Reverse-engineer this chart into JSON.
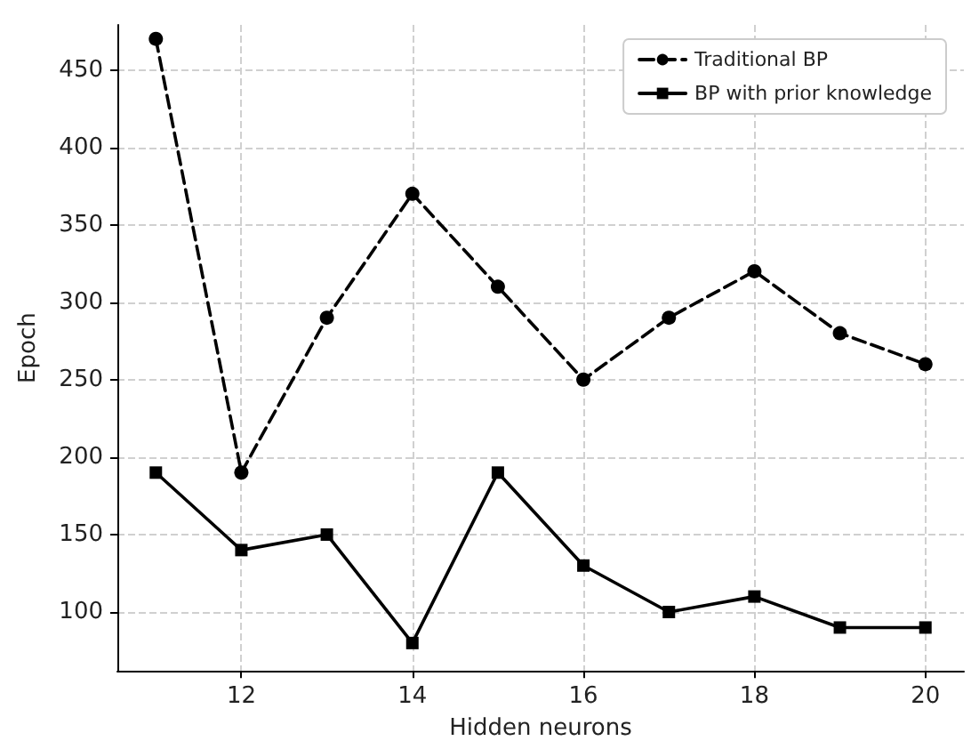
{
  "chart_data": {
    "type": "line",
    "xlabel": "Hidden neurons",
    "ylabel": "Epoch",
    "x": [
      11,
      12,
      13,
      14,
      15,
      16,
      17,
      18,
      19,
      20
    ],
    "series": [
      {
        "name": "Traditional BP",
        "color": "#000000",
        "marker": "circle",
        "line_style": "dashed",
        "values": [
          470,
          190,
          290,
          370,
          310,
          250,
          290,
          320,
          280,
          260
        ]
      },
      {
        "name": "BP with prior knowledge",
        "color": "#000000",
        "marker": "square",
        "line_style": "solid",
        "values": [
          190,
          140,
          150,
          80,
          190,
          130,
          100,
          110,
          90,
          90
        ]
      }
    ],
    "xlim": [
      10.55,
      20.45
    ],
    "xticks": [
      12,
      14,
      16,
      18,
      20
    ],
    "ylim": [
      62,
      479
    ],
    "yticks": [
      100,
      150,
      200,
      250,
      300,
      350,
      400,
      450
    ],
    "grid": true,
    "legend": "top right"
  }
}
